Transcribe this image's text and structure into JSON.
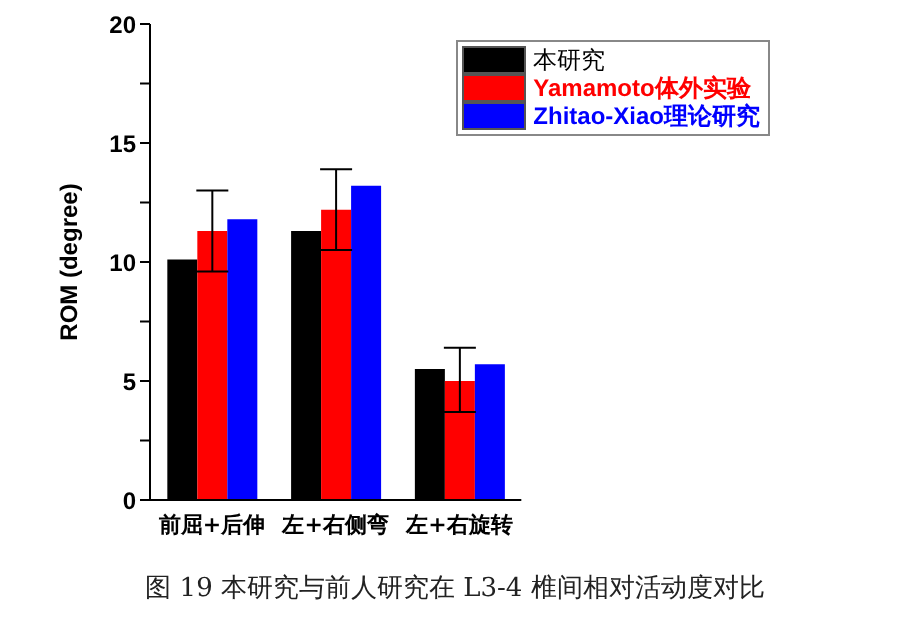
{
  "chart_data": {
    "type": "bar",
    "ylabel": "ROM (degree)",
    "categories": [
      "前屈+后伸",
      "左+右侧弯",
      "左+右旋转"
    ],
    "series": [
      {
        "name": "本研究",
        "color": "#000000",
        "values": [
          10.1,
          11.3,
          5.5
        ]
      },
      {
        "name": "Yamamoto体外实验",
        "color": "#ff0000",
        "values": [
          11.3,
          12.2,
          5.0
        ],
        "errors": [
          [
            9.6,
            13.0
          ],
          [
            10.5,
            13.9
          ],
          [
            3.7,
            6.4
          ]
        ]
      },
      {
        "name": "Zhitao-Xiao理论研究",
        "color": "#0000ff",
        "values": [
          11.8,
          13.2,
          5.7
        ]
      }
    ],
    "ylim": [
      0,
      20
    ],
    "yticks": [
      0,
      {
        "value": 2.5,
        "label": null
      },
      5,
      {
        "value": 7.5,
        "label": null
      },
      10,
      {
        "value": 12.5,
        "label": null
      },
      15,
      {
        "value": 17.5,
        "label": null
      },
      20
    ],
    "legend": "top right",
    "grid": false,
    "annotations": [
      "图 19 本研究与前人研究在 L3-4 椎间相对活动度对比"
    ]
  }
}
